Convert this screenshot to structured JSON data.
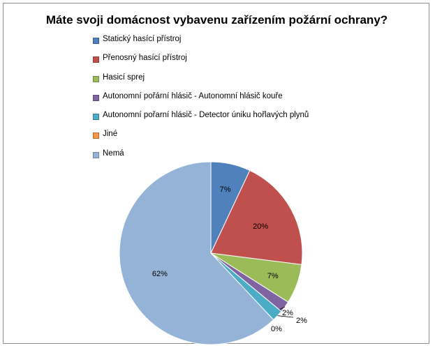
{
  "chart_data": {
    "type": "pie",
    "title": "Máte svoji domácnost vybavenu zařízením požární ochrany?",
    "legend_position": "top",
    "slices": [
      {
        "label": "Statický hasící přístroj",
        "value": 7,
        "display": "7%",
        "color": "#4f81bd"
      },
      {
        "label": "Přenosný hasící přístroj",
        "value": 20,
        "display": "20%",
        "color": "#c0504d"
      },
      {
        "label": "Hasicí sprej",
        "value": 7,
        "display": "7%",
        "color": "#9bbb59"
      },
      {
        "label": "Autonomní pořární hlásič - Autonomní hlásič kouře",
        "value": 2,
        "display": "2%",
        "color": "#8064a2"
      },
      {
        "label": "Autonomní pořarní hlásič - Detector úniku hořlavých plynů",
        "value": 2,
        "display": "2%",
        "color": "#4bacc6"
      },
      {
        "label": "Jiné",
        "value": 0,
        "display": "0%",
        "color": "#f79646"
      },
      {
        "label": "Nemá",
        "value": 62,
        "display": "62%",
        "color": "#95b3d7"
      }
    ]
  }
}
